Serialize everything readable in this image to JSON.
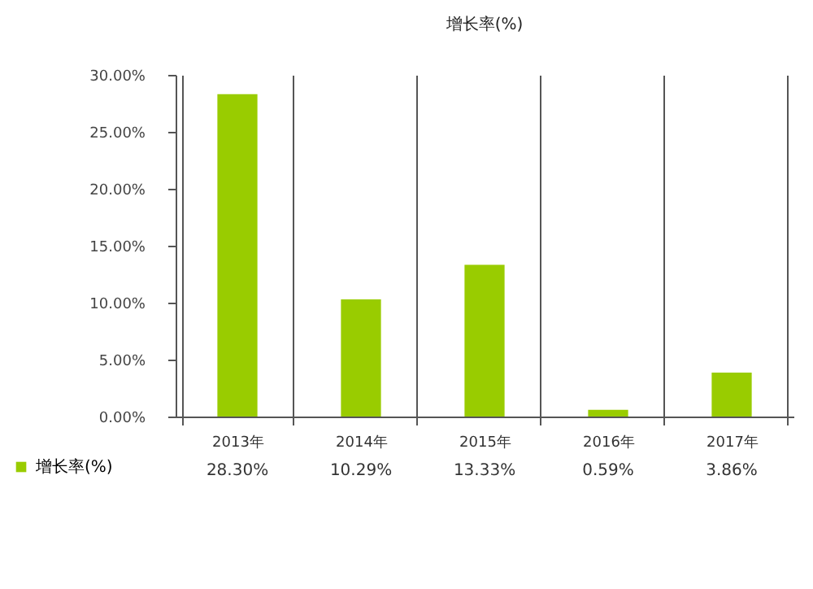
{
  "chart_data": {
    "type": "bar",
    "title": "增长率(%)",
    "categories": [
      "2013年",
      "2014年",
      "2015年",
      "2016年",
      "2017年"
    ],
    "series": [
      {
        "name": "增长率(%)",
        "color": "#99cc00",
        "values": [
          28.3,
          10.29,
          13.33,
          0.59,
          3.86
        ],
        "value_labels": [
          "28.30%",
          "10.29%",
          "13.33%",
          "0.59%",
          "3.86%"
        ]
      }
    ],
    "ylim": [
      0,
      30
    ],
    "yticks": [
      {
        "value": 0,
        "label": "0.00%"
      },
      {
        "value": 5,
        "label": "5.00%"
      },
      {
        "value": 10,
        "label": "10.00%"
      },
      {
        "value": 15,
        "label": "15.00%"
      },
      {
        "value": 20,
        "label": "20.00%"
      },
      {
        "value": 25,
        "label": "25.00%"
      },
      {
        "value": 30,
        "label": "30.00%"
      }
    ],
    "grid": false,
    "legend": "bottom left"
  }
}
